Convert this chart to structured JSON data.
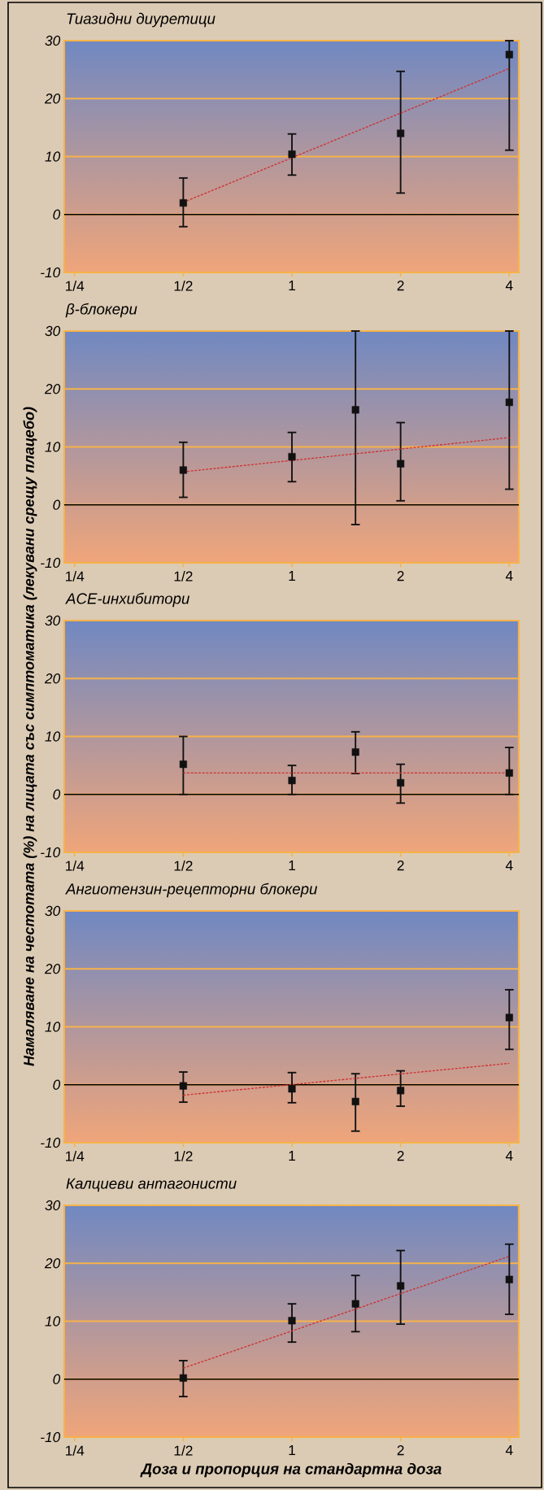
{
  "chart_data": [
    {
      "type": "scatter",
      "title": "Тиазидни диуретици",
      "xlim": [
        0.234,
        4.25
      ],
      "ylim": [
        -10,
        30
      ],
      "log": "x",
      "grid": "y",
      "xticks": [
        {
          "value": 0.25,
          "label": "1/4"
        },
        {
          "value": 0.5,
          "label": "1/2"
        },
        {
          "value": 1,
          "label": "1"
        },
        {
          "value": 2,
          "label": "2"
        },
        {
          "value": 4,
          "label": "4"
        }
      ],
      "yticks": [
        -10,
        0,
        10,
        20,
        30
      ],
      "ref_lines": [
        {
          "axis": "y",
          "value": 0,
          "color": "#000000"
        }
      ],
      "series": [
        {
          "color": "#111111",
          "marker": "square",
          "x": [
            0.5,
            1,
            2,
            4
          ],
          "values": [
            2.0,
            10.4,
            14.0,
            27.6
          ],
          "errors": [
            [
              -2.1,
              6.3
            ],
            [
              6.8,
              13.9
            ],
            [
              3.7,
              24.7
            ],
            [
              11.1,
              30
            ]
          ]
        },
        {
          "type": "line",
          "color": "#d03030",
          "line_style": "dashed",
          "x": [
            0.5,
            4
          ],
          "values": [
            2.1,
            25.2
          ]
        }
      ]
    },
    {
      "type": "scatter",
      "title": "β-блокери",
      "xlim": [
        0.234,
        4.25
      ],
      "ylim": [
        -10,
        30
      ],
      "log": "x",
      "grid": "y",
      "xticks": [
        {
          "value": 0.25,
          "label": "1/4"
        },
        {
          "value": 0.5,
          "label": "1/2"
        },
        {
          "value": 1,
          "label": "1"
        },
        {
          "value": 2,
          "label": "2"
        },
        {
          "value": 4,
          "label": "4"
        }
      ],
      "yticks": [
        -10,
        0,
        10,
        20,
        30
      ],
      "ref_lines": [
        {
          "axis": "y",
          "value": 0,
          "color": "#000000"
        }
      ],
      "series": [
        {
          "color": "#111111",
          "marker": "square",
          "x": [
            0.5,
            1,
            1.5,
            2,
            4
          ],
          "values": [
            6.0,
            8.3,
            16.4,
            7.1,
            17.7
          ],
          "errors": [
            [
              1.3,
              10.8
            ],
            [
              4.0,
              12.5
            ],
            [
              -3.4,
              30
            ],
            [
              0.7,
              14.2
            ],
            [
              2.7,
              30
            ]
          ]
        },
        {
          "type": "line",
          "color": "#d03030",
          "line_style": "dashed",
          "x": [
            0.5,
            4
          ],
          "values": [
            5.7,
            11.6
          ]
        }
      ]
    },
    {
      "type": "scatter",
      "title": "ACE-инхибитори",
      "ylabel": "Намаляване на честотата (%) на лицата със симптоматика (лекувани срещу плацебо)",
      "xlim": [
        0.234,
        4.25
      ],
      "ylim": [
        -10,
        30
      ],
      "log": "x",
      "grid": "y",
      "xticks": [
        {
          "value": 0.25,
          "label": "1/4"
        },
        {
          "value": 0.5,
          "label": "1/2"
        },
        {
          "value": 1,
          "label": "1"
        },
        {
          "value": 2,
          "label": "2"
        },
        {
          "value": 4,
          "label": "4"
        }
      ],
      "yticks": [
        -10,
        0,
        10,
        20,
        30
      ],
      "ref_lines": [
        {
          "axis": "y",
          "value": 0,
          "color": "#000000"
        }
      ],
      "series": [
        {
          "color": "#111111",
          "marker": "square",
          "x": [
            0.5,
            1,
            1.5,
            2,
            4
          ],
          "values": [
            5.2,
            2.4,
            7.3,
            2.0,
            3.7
          ],
          "errors": [
            [
              0,
              10.0
            ],
            [
              0,
              5.0
            ],
            [
              3.6,
              10.8
            ],
            [
              -1.5,
              5.2
            ],
            [
              0,
              8.1
            ]
          ]
        },
        {
          "type": "line",
          "color": "#d03030",
          "line_style": "dashed",
          "x": [
            0.5,
            4
          ],
          "values": [
            3.7,
            3.7
          ]
        }
      ]
    },
    {
      "type": "scatter",
      "title": "Ангиотензин-рецепторни блокери",
      "xlim": [
        0.234,
        4.25
      ],
      "ylim": [
        -10,
        30
      ],
      "log": "x",
      "grid": "y",
      "xticks": [
        {
          "value": 0.25,
          "label": "1/4"
        },
        {
          "value": 0.5,
          "label": "1/2"
        },
        {
          "value": 1,
          "label": "1"
        },
        {
          "value": 2,
          "label": "2"
        },
        {
          "value": 4,
          "label": "4"
        }
      ],
      "yticks": [
        -10,
        0,
        10,
        20,
        30
      ],
      "ref_lines": [
        {
          "axis": "y",
          "value": 0,
          "color": "#000000"
        }
      ],
      "series": [
        {
          "color": "#111111",
          "marker": "square",
          "x": [
            0.5,
            1,
            1.5,
            2,
            4
          ],
          "values": [
            -0.2,
            -0.7,
            -2.9,
            -1.0,
            11.6
          ],
          "errors": [
            [
              -3.0,
              2.2
            ],
            [
              -3.1,
              2.1
            ],
            [
              -8.0,
              1.9
            ],
            [
              -3.7,
              2.4
            ],
            [
              6.1,
              16.4
            ]
          ]
        },
        {
          "type": "line",
          "color": "#d03030",
          "line_style": "dashed",
          "x": [
            0.5,
            4
          ],
          "values": [
            -1.8,
            3.7
          ]
        }
      ]
    },
    {
      "type": "scatter",
      "title": "Калциеви антагонисти",
      "xlabel": "Доза и пропорция на стандартна доза",
      "xlim": [
        0.234,
        4.25
      ],
      "ylim": [
        -10,
        30
      ],
      "log": "x",
      "grid": "y",
      "xticks": [
        {
          "value": 0.25,
          "label": "1/4"
        },
        {
          "value": 0.5,
          "label": "1/2"
        },
        {
          "value": 1,
          "label": "1"
        },
        {
          "value": 2,
          "label": "2"
        },
        {
          "value": 4,
          "label": "4"
        }
      ],
      "yticks": [
        -10,
        0,
        10,
        20,
        30
      ],
      "ref_lines": [
        {
          "axis": "y",
          "value": 0,
          "color": "#000000"
        }
      ],
      "series": [
        {
          "color": "#111111",
          "marker": "square",
          "x": [
            0.5,
            1,
            1.5,
            2,
            4
          ],
          "values": [
            0.2,
            10.1,
            13.0,
            16.1,
            17.2
          ],
          "errors": [
            [
              -3.0,
              3.2
            ],
            [
              6.4,
              13.0
            ],
            [
              8.2,
              17.9
            ],
            [
              9.5,
              22.2
            ],
            [
              11.2,
              23.3
            ]
          ]
        },
        {
          "type": "line",
          "color": "#d03030",
          "line_style": "dashed",
          "x": [
            0.5,
            4
          ],
          "values": [
            1.9,
            21.2
          ]
        }
      ]
    }
  ]
}
